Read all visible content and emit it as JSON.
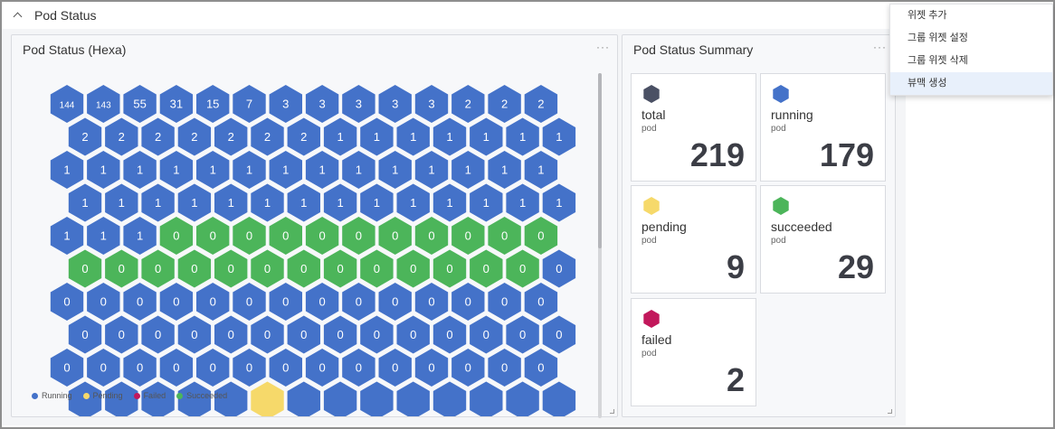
{
  "section": {
    "title": "Pod Status"
  },
  "hex_panel": {
    "title": "Pod Status (Hexa)",
    "more_label": "···",
    "colors": {
      "running": "#4472c9",
      "pending": "#f6d96a",
      "failed": "#c2185b",
      "succeeded": "#4cb55a"
    },
    "rows": [
      [
        [
          "144",
          "running"
        ],
        [
          "143",
          "running"
        ],
        [
          "55",
          "running"
        ],
        [
          "31",
          "running"
        ],
        [
          "15",
          "running"
        ],
        [
          "7",
          "running"
        ],
        [
          "3",
          "running"
        ],
        [
          "3",
          "running"
        ],
        [
          "3",
          "running"
        ],
        [
          "3",
          "running"
        ],
        [
          "3",
          "running"
        ],
        [
          "2",
          "running"
        ],
        [
          "2",
          "running"
        ],
        [
          "2",
          "running"
        ]
      ],
      [
        [
          "2",
          "running"
        ],
        [
          "2",
          "running"
        ],
        [
          "2",
          "running"
        ],
        [
          "2",
          "running"
        ],
        [
          "2",
          "running"
        ],
        [
          "2",
          "running"
        ],
        [
          "2",
          "running"
        ],
        [
          "1",
          "running"
        ],
        [
          "1",
          "running"
        ],
        [
          "1",
          "running"
        ],
        [
          "1",
          "running"
        ],
        [
          "1",
          "running"
        ],
        [
          "1",
          "running"
        ],
        [
          "1",
          "running"
        ]
      ],
      [
        [
          "1",
          "running"
        ],
        [
          "1",
          "running"
        ],
        [
          "1",
          "running"
        ],
        [
          "1",
          "running"
        ],
        [
          "1",
          "running"
        ],
        [
          "1",
          "running"
        ],
        [
          "1",
          "running"
        ],
        [
          "1",
          "running"
        ],
        [
          "1",
          "running"
        ],
        [
          "1",
          "running"
        ],
        [
          "1",
          "running"
        ],
        [
          "1",
          "running"
        ],
        [
          "1",
          "running"
        ],
        [
          "1",
          "running"
        ]
      ],
      [
        [
          "1",
          "running"
        ],
        [
          "1",
          "running"
        ],
        [
          "1",
          "running"
        ],
        [
          "1",
          "running"
        ],
        [
          "1",
          "running"
        ],
        [
          "1",
          "running"
        ],
        [
          "1",
          "running"
        ],
        [
          "1",
          "running"
        ],
        [
          "1",
          "running"
        ],
        [
          "1",
          "running"
        ],
        [
          "1",
          "running"
        ],
        [
          "1",
          "running"
        ],
        [
          "1",
          "running"
        ],
        [
          "1",
          "running"
        ]
      ],
      [
        [
          "1",
          "running"
        ],
        [
          "1",
          "running"
        ],
        [
          "1",
          "running"
        ],
        [
          "0",
          "succeeded"
        ],
        [
          "0",
          "succeeded"
        ],
        [
          "0",
          "succeeded"
        ],
        [
          "0",
          "succeeded"
        ],
        [
          "0",
          "succeeded"
        ],
        [
          "0",
          "succeeded"
        ],
        [
          "0",
          "succeeded"
        ],
        [
          "0",
          "succeeded"
        ],
        [
          "0",
          "succeeded"
        ],
        [
          "0",
          "succeeded"
        ],
        [
          "0",
          "succeeded"
        ]
      ],
      [
        [
          "0",
          "succeeded"
        ],
        [
          "0",
          "succeeded"
        ],
        [
          "0",
          "succeeded"
        ],
        [
          "0",
          "succeeded"
        ],
        [
          "0",
          "succeeded"
        ],
        [
          "0",
          "succeeded"
        ],
        [
          "0",
          "succeeded"
        ],
        [
          "0",
          "succeeded"
        ],
        [
          "0",
          "succeeded"
        ],
        [
          "0",
          "succeeded"
        ],
        [
          "0",
          "succeeded"
        ],
        [
          "0",
          "succeeded"
        ],
        [
          "0",
          "succeeded"
        ],
        [
          "0",
          "running"
        ]
      ],
      [
        [
          "0",
          "running"
        ],
        [
          "0",
          "running"
        ],
        [
          "0",
          "running"
        ],
        [
          "0",
          "running"
        ],
        [
          "0",
          "running"
        ],
        [
          "0",
          "running"
        ],
        [
          "0",
          "running"
        ],
        [
          "0",
          "running"
        ],
        [
          "0",
          "running"
        ],
        [
          "0",
          "running"
        ],
        [
          "0",
          "running"
        ],
        [
          "0",
          "running"
        ],
        [
          "0",
          "running"
        ],
        [
          "0",
          "running"
        ]
      ],
      [
        [
          "0",
          "running"
        ],
        [
          "0",
          "running"
        ],
        [
          "0",
          "running"
        ],
        [
          "0",
          "running"
        ],
        [
          "0",
          "running"
        ],
        [
          "0",
          "running"
        ],
        [
          "0",
          "running"
        ],
        [
          "0",
          "running"
        ],
        [
          "0",
          "running"
        ],
        [
          "0",
          "running"
        ],
        [
          "0",
          "running"
        ],
        [
          "0",
          "running"
        ],
        [
          "0",
          "running"
        ],
        [
          "0",
          "running"
        ]
      ],
      [
        [
          "0",
          "running"
        ],
        [
          "0",
          "running"
        ],
        [
          "0",
          "running"
        ],
        [
          "0",
          "running"
        ],
        [
          "0",
          "running"
        ],
        [
          "0",
          "running"
        ],
        [
          "0",
          "running"
        ],
        [
          "0",
          "running"
        ],
        [
          "0",
          "running"
        ],
        [
          "0",
          "running"
        ],
        [
          "0",
          "running"
        ],
        [
          "0",
          "running"
        ],
        [
          "0",
          "running"
        ],
        [
          "0",
          "running"
        ]
      ],
      [
        [
          "",
          "running"
        ],
        [
          "",
          "running"
        ],
        [
          "",
          "running"
        ],
        [
          "",
          "running"
        ],
        [
          "",
          "running"
        ],
        [
          "",
          "pending"
        ],
        [
          "",
          "running"
        ],
        [
          "",
          "running"
        ],
        [
          "",
          "running"
        ],
        [
          "",
          "running"
        ],
        [
          "",
          "running"
        ],
        [
          "",
          "running"
        ],
        [
          "",
          "running"
        ],
        [
          "",
          "running"
        ]
      ]
    ],
    "legend": [
      {
        "label": "Running",
        "color": "#4472c9"
      },
      {
        "label": "Pending",
        "color": "#f6d96a"
      },
      {
        "label": "Failed",
        "color": "#c2185b"
      },
      {
        "label": "Succeeded",
        "color": "#4cb55a"
      }
    ]
  },
  "summary_panel": {
    "title": "Pod Status Summary",
    "more_label": "···",
    "cards": [
      {
        "label": "total",
        "unit": "pod",
        "value": "219",
        "color": "#4a5064"
      },
      {
        "label": "running",
        "unit": "pod",
        "value": "179",
        "color": "#4472c9"
      },
      {
        "label": "pending",
        "unit": "pod",
        "value": "9",
        "color": "#f6d96a"
      },
      {
        "label": "succeeded",
        "unit": "pod",
        "value": "29",
        "color": "#4cb55a"
      },
      {
        "label": "failed",
        "unit": "pod",
        "value": "2",
        "color": "#c2185b"
      }
    ]
  },
  "context_menu": {
    "items": [
      {
        "label": "위젯 추가",
        "active": false
      },
      {
        "label": "그룹 위젯 설정",
        "active": false
      },
      {
        "label": "그룹 위젯 삭제",
        "active": false
      },
      {
        "label": "뷰맥 생성",
        "active": true
      }
    ]
  }
}
